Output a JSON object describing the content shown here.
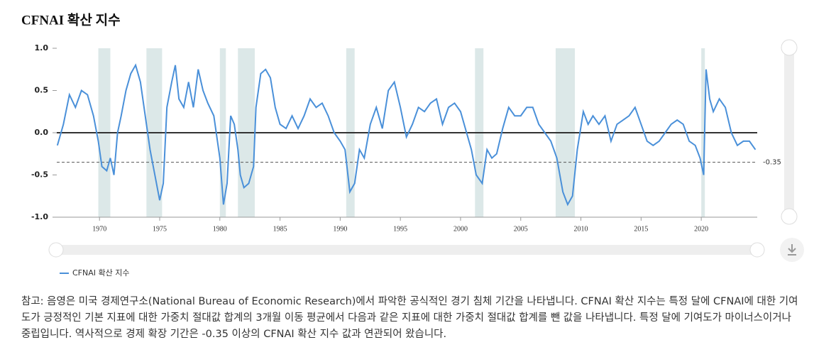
{
  "chart_data": {
    "type": "line",
    "title": "CFNAI 확산 지수",
    "x": [
      1966.5,
      1967.0,
      1967.5,
      1968.0,
      1968.5,
      1969.0,
      1969.5,
      1969.9,
      1970.2,
      1970.6,
      1970.9,
      1971.2,
      1971.5,
      1971.8,
      1972.2,
      1972.6,
      1973.0,
      1973.4,
      1973.8,
      1974.2,
      1974.6,
      1975.0,
      1975.3,
      1975.6,
      1976.0,
      1976.3,
      1976.6,
      1977.0,
      1977.4,
      1977.8,
      1978.2,
      1978.6,
      1979.0,
      1979.5,
      1979.8,
      1980.0,
      1980.3,
      1980.6,
      1980.9,
      1981.2,
      1981.5,
      1981.7,
      1982.0,
      1982.4,
      1982.8,
      1983.0,
      1983.4,
      1983.8,
      1984.2,
      1984.6,
      1985.0,
      1985.5,
      1986.0,
      1986.5,
      1987.0,
      1987.5,
      1988.0,
      1988.5,
      1989.0,
      1989.5,
      1990.0,
      1990.4,
      1990.8,
      1991.2,
      1991.6,
      1992.0,
      1992.5,
      1993.0,
      1993.5,
      1994.0,
      1994.5,
      1995.0,
      1995.5,
      1996.0,
      1996.5,
      1997.0,
      1997.5,
      1998.0,
      1998.5,
      1999.0,
      1999.5,
      2000.0,
      2000.5,
      2000.9,
      2001.3,
      2001.8,
      2002.2,
      2002.6,
      2003.0,
      2003.5,
      2004.0,
      2004.5,
      2005.0,
      2005.5,
      2006.0,
      2006.5,
      2007.0,
      2007.5,
      2008.0,
      2008.5,
      2008.9,
      2009.3,
      2009.7,
      2010.2,
      2010.6,
      2011.0,
      2011.5,
      2012.0,
      2012.5,
      2013.0,
      2013.5,
      2014.0,
      2014.5,
      2015.0,
      2015.5,
      2016.0,
      2016.5,
      2017.0,
      2017.5,
      2018.0,
      2018.5,
      2019.0,
      2019.5,
      2019.9,
      2020.2,
      2020.4,
      2020.7,
      2021.0,
      2021.5,
      2022.0,
      2022.5,
      2023.0,
      2023.5,
      2024.0,
      2024.5
    ],
    "series": [
      {
        "name": "CFNAI 확산 지수",
        "color": "#4a90d9",
        "values": [
          -0.15,
          0.1,
          0.45,
          0.3,
          0.5,
          0.45,
          0.2,
          -0.1,
          -0.4,
          -0.45,
          -0.3,
          -0.5,
          0.0,
          0.2,
          0.5,
          0.7,
          0.8,
          0.6,
          0.2,
          -0.2,
          -0.5,
          -0.8,
          -0.6,
          0.3,
          0.6,
          0.8,
          0.4,
          0.3,
          0.6,
          0.3,
          0.75,
          0.5,
          0.35,
          0.2,
          -0.1,
          -0.3,
          -0.85,
          -0.6,
          0.2,
          0.1,
          -0.2,
          -0.5,
          -0.65,
          -0.6,
          -0.4,
          0.3,
          0.7,
          0.75,
          0.65,
          0.3,
          0.1,
          0.05,
          0.2,
          0.05,
          0.2,
          0.4,
          0.3,
          0.35,
          0.2,
          0.0,
          -0.1,
          -0.2,
          -0.7,
          -0.6,
          -0.2,
          -0.3,
          0.1,
          0.3,
          0.05,
          0.5,
          0.6,
          0.3,
          -0.05,
          0.1,
          0.3,
          0.25,
          0.35,
          0.4,
          0.1,
          0.3,
          0.35,
          0.25,
          0.0,
          -0.2,
          -0.5,
          -0.6,
          -0.2,
          -0.3,
          -0.25,
          0.05,
          0.3,
          0.2,
          0.2,
          0.3,
          0.3,
          0.1,
          0.0,
          -0.1,
          -0.3,
          -0.7,
          -0.85,
          -0.75,
          -0.2,
          0.25,
          0.1,
          0.2,
          0.1,
          0.2,
          -0.1,
          0.1,
          0.15,
          0.2,
          0.3,
          0.1,
          -0.1,
          -0.15,
          -0.1,
          0.0,
          0.1,
          0.15,
          0.1,
          -0.1,
          -0.15,
          -0.3,
          -0.5,
          0.75,
          0.4,
          0.25,
          0.4,
          0.3,
          0.0,
          -0.15,
          -0.1,
          -0.1,
          -0.2
        ]
      }
    ],
    "recessions": [
      [
        1969.9,
        1970.9
      ],
      [
        1973.9,
        1975.2
      ],
      [
        1980.0,
        1980.5
      ],
      [
        1981.5,
        1982.9
      ],
      [
        1990.5,
        1991.2
      ],
      [
        2001.2,
        2001.9
      ],
      [
        2007.9,
        2009.5
      ],
      [
        2020.0,
        2020.3
      ]
    ],
    "reference_line": {
      "value": -0.35,
      "label": "-0.35"
    },
    "xlim": [
      1966.45,
      2024.65
    ],
    "xticks": [
      1970,
      1975,
      1980,
      1985,
      1990,
      1995,
      2000,
      2005,
      2010,
      2015,
      2020
    ],
    "ylim": [
      -1,
      1
    ],
    "yticks": [
      {
        "value": 1,
        "label": "1.0"
      },
      {
        "value": 0.5,
        "label": "0.5"
      },
      {
        "value": 0,
        "label": "0.0"
      },
      {
        "value": -0.5,
        "label": "-0.5"
      },
      {
        "value": -1,
        "label": "-1.0"
      }
    ],
    "note": "참고: 음영은 미국 경제연구소(National Bureau of Economic Research)에서 파악한 공식적인 경기 침체 기간을 나타냅니다. CFNAI 확산 지수는 특정 달에 CFNAI에 대한 기여도가 긍정적인 기본 지표에 대한 가중치 절대값 합계의 3개월 이동 평균에서 다음과 같은 지표에 대한 가중치 절대값 합계를 뺀 값을 나타냅니다. 특정 달에 기여도가 마이너스이거나 중립입니다. 역사적으로 경제 확장 기간은 -0.35 이상의 CFNAI 확산 지수 값과 연관되어 왔습니다."
  }
}
